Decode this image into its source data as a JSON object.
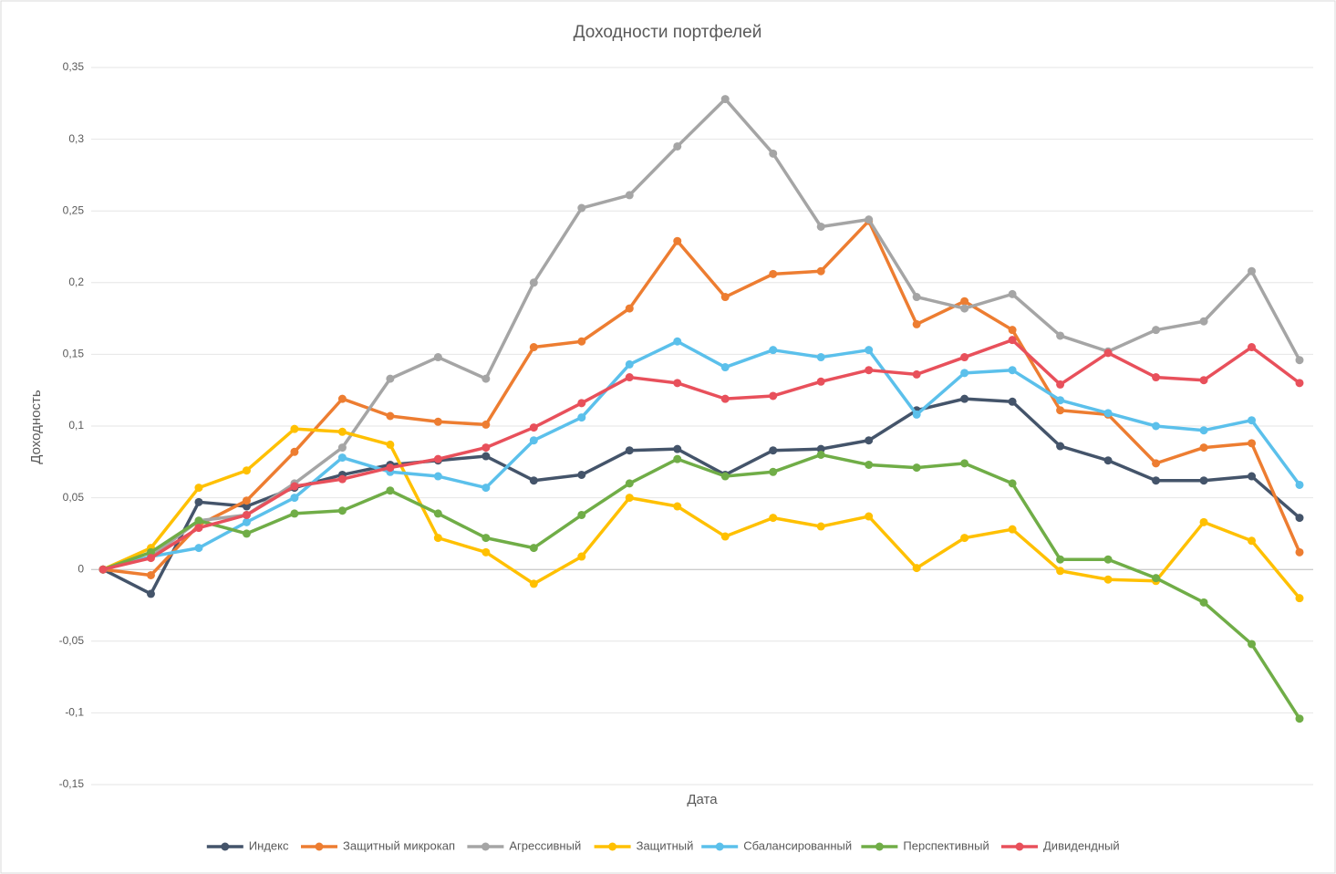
{
  "chart_data": {
    "type": "line",
    "title": "Доходности портфелей",
    "x_label": "Дата",
    "y_label": "Доходность",
    "categories": [
      null,
      null,
      null,
      null,
      null,
      null,
      null,
      null,
      null,
      null,
      null,
      null,
      null,
      null,
      null,
      null,
      null,
      null,
      null,
      null,
      null,
      null,
      null,
      null,
      null,
      null
    ],
    "ylim": [
      -0.15,
      0.35
    ],
    "yticks": [
      {
        "value": -0.15,
        "label": "-0,15"
      },
      {
        "value": -0.1,
        "label": "-0,1"
      },
      {
        "value": -0.05,
        "label": "-0,05"
      },
      0,
      {
        "value": 0.05,
        "label": "0,05"
      },
      {
        "value": 0.1,
        "label": "0,1"
      },
      {
        "value": 0.15,
        "label": "0,15"
      },
      {
        "value": 0.2,
        "label": "0,2"
      },
      {
        "value": 0.25,
        "label": "0,25"
      },
      {
        "value": 0.3,
        "label": "0,3"
      },
      {
        "value": 0.35,
        "label": "0,35"
      }
    ],
    "grid": true,
    "legend": "bottom",
    "series": [
      {
        "name": "Индекс",
        "color": "#44546a",
        "values": [
          0,
          -0.017,
          0.047,
          0.044,
          0.057,
          0.066,
          0.073,
          0.076,
          0.079,
          0.062,
          0.066,
          0.083,
          0.084,
          0.066,
          0.083,
          0.084,
          0.09,
          0.111,
          0.119,
          0.117,
          0.086,
          0.076,
          0.062,
          0.062,
          0.065,
          0.036
        ]
      },
      {
        "name": "Защитный микрокап",
        "color": "#ed7d31",
        "values": [
          0,
          -0.004,
          0.031,
          0.048,
          0.082,
          0.119,
          0.107,
          0.103,
          0.101,
          0.155,
          0.159,
          0.182,
          0.229,
          0.19,
          0.206,
          0.208,
          0.243,
          0.171,
          0.187,
          0.167,
          0.111,
          0.108,
          0.074,
          0.085,
          0.088,
          0.012
        ]
      },
      {
        "name": "Агрессивный",
        "color": "#a5a5a5",
        "values": [
          0,
          0.009,
          0.034,
          0.038,
          0.06,
          0.085,
          0.133,
          0.148,
          0.133,
          0.2,
          0.252,
          0.261,
          0.295,
          0.328,
          0.29,
          0.239,
          0.244,
          0.19,
          0.182,
          0.192,
          0.163,
          0.152,
          0.167,
          0.173,
          0.208,
          0.146
        ]
      },
      {
        "name": "Защитный",
        "color": "#ffc000",
        "values": [
          0,
          0.015,
          0.057,
          0.069,
          0.098,
          0.096,
          0.087,
          0.022,
          0.012,
          -0.01,
          0.009,
          0.05,
          0.044,
          0.023,
          0.036,
          0.03,
          0.037,
          0.001,
          0.022,
          0.028,
          -0.001,
          -0.007,
          -0.008,
          0.033,
          0.02,
          -0.02
        ]
      },
      {
        "name": "Сбалансированный",
        "color": "#5bc0eb",
        "values": [
          0,
          0.009,
          0.015,
          0.033,
          0.05,
          0.078,
          0.068,
          0.065,
          0.057,
          0.09,
          0.106,
          0.143,
          0.159,
          0.141,
          0.153,
          0.148,
          0.153,
          0.108,
          0.137,
          0.139,
          0.118,
          0.109,
          0.1,
          0.097,
          0.104,
          0.059
        ]
      },
      {
        "name": "Перспективный",
        "color": "#70ad47",
        "values": [
          0,
          0.012,
          0.034,
          0.025,
          0.039,
          0.041,
          0.055,
          0.039,
          0.022,
          0.015,
          0.038,
          0.06,
          0.077,
          0.065,
          0.068,
          0.08,
          0.073,
          0.071,
          0.074,
          0.06,
          0.007,
          0.007,
          -0.006,
          -0.023,
          -0.052,
          -0.104
        ]
      },
      {
        "name": "Дивидендный",
        "color": "#e8505b",
        "values": [
          0,
          0.008,
          0.029,
          0.038,
          0.058,
          0.063,
          0.071,
          0.077,
          0.085,
          0.099,
          0.116,
          0.134,
          0.13,
          0.119,
          0.121,
          0.131,
          0.139,
          0.136,
          0.148,
          0.16,
          0.129,
          0.151,
          0.134,
          0.132,
          0.155,
          0.13
        ]
      }
    ]
  }
}
